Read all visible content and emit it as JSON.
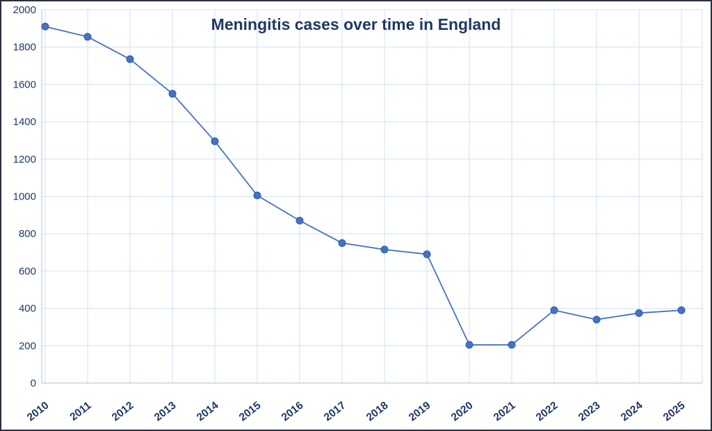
{
  "chart_data": {
    "type": "line",
    "title": "Meningitis cases over time in England",
    "x": [
      "2010",
      "2011",
      "2012",
      "2013",
      "2014",
      "2015",
      "2016",
      "2017",
      "2018",
      "2019",
      "2020",
      "2021",
      "2022",
      "2023",
      "2024",
      "2025"
    ],
    "series": [
      {
        "name": "Meningitis cases",
        "values": [
          1910,
          1855,
          1735,
          1550,
          1295,
          1005,
          870,
          750,
          715,
          690,
          205,
          205,
          390,
          340,
          375,
          390
        ]
      }
    ],
    "xlabel": "",
    "ylabel": "",
    "ylim": [
      0,
      2000
    ],
    "ytick_step": 200,
    "grid": "both",
    "legend": false
  },
  "colors": {
    "line": "#4472c4",
    "marker_fill": "#4472c4",
    "marker_stroke": "#2e5aa0",
    "grid": "#cfe0f2",
    "axis": "#b7cbe4",
    "tick_label": "#1f3864",
    "title": "#1f3864",
    "border": "#2b2f3e",
    "background": "#ffffff"
  }
}
